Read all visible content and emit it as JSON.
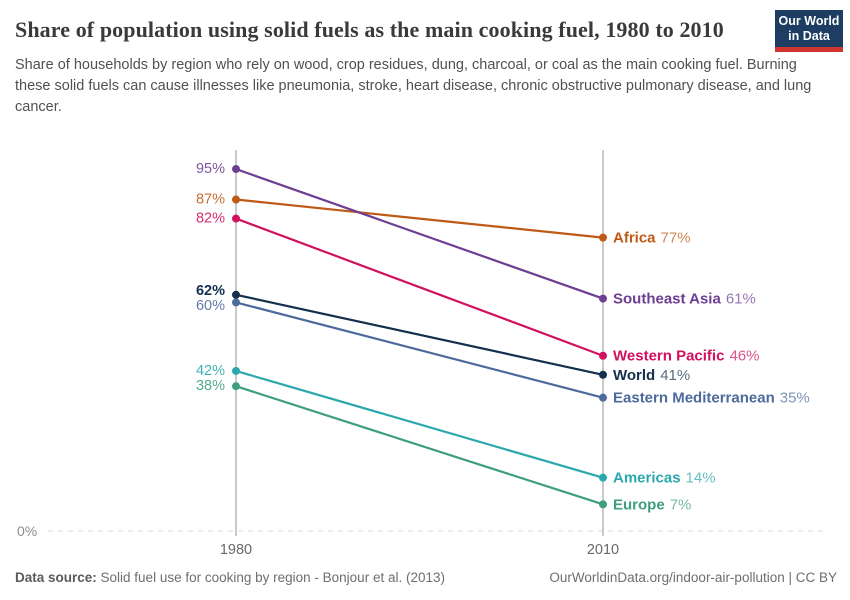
{
  "header": {
    "title": "Share of population using solid fuels as the main cooking fuel, 1980 to 2010",
    "subtitle": "Share of households by region who rely on wood, crop residues, dung, charcoal, or coal as the main cooking fuel. Burning these solid fuels can cause illnesses like pneumonia, stroke, heart disease, chronic obstructive pulmonary disease, and lung cancer."
  },
  "logo": {
    "line1": "Our World",
    "line2": "in Data",
    "bg_color": "#1d3d63",
    "accent_color": "#d0352f"
  },
  "chart_data": {
    "type": "line",
    "subtype": "slope",
    "x": [
      1980,
      2010
    ],
    "x_tick_labels": [
      "1980",
      "2010"
    ],
    "ylim": [
      0,
      100
    ],
    "zero_label": "0%",
    "grid": "zero-line-dashed",
    "legend_position": "right-inline",
    "series": [
      {
        "name": "Africa",
        "values": [
          87,
          77
        ],
        "start_label": "87%",
        "end_value_label": "77%",
        "color": "#be5a15",
        "bold": false
      },
      {
        "name": "Southeast Asia",
        "values": [
          95,
          61
        ],
        "start_label": "95%",
        "end_value_label": "61%",
        "color": "#6d3e91",
        "bold": false
      },
      {
        "name": "Western Pacific",
        "values": [
          82,
          46
        ],
        "start_label": "82%",
        "end_value_label": "46%",
        "color": "#d1105f",
        "bold": false
      },
      {
        "name": "World",
        "values": [
          62,
          41
        ],
        "start_label": "62%",
        "end_value_label": "41%",
        "color": "#14304e",
        "bold": true
      },
      {
        "name": "Eastern Mediterranean",
        "values": [
          60,
          35
        ],
        "start_label": "60%",
        "end_value_label": "35%",
        "color": "#4c6a9c",
        "bold": false
      },
      {
        "name": "Americas",
        "values": [
          42,
          14
        ],
        "start_label": "42%",
        "end_value_label": "14%",
        "color": "#2ba8ad",
        "bold": false
      },
      {
        "name": "Europe",
        "values": [
          38,
          7
        ],
        "start_label": "38%",
        "end_value_label": "7%",
        "color": "#3e9e7d",
        "bold": false
      }
    ]
  },
  "footer": {
    "source_label": "Data source:",
    "source_text": " Solid fuel use for cooking by region - Bonjour et al. (2013)",
    "rights": "OurWorldinData.org/indoor-air-pollution | CC BY"
  }
}
